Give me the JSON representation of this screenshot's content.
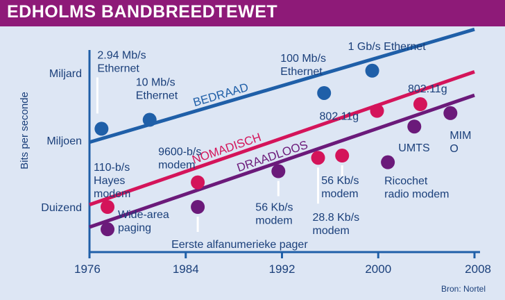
{
  "title": "EDHOLMS BANDBREEDTEWET",
  "source": "Bron: Nortel",
  "colors": {
    "title_bar": "#8e1a78",
    "background": "#dde6f4",
    "wired": "#1f5fa8",
    "nomadic": "#d4145a",
    "wireless": "#6b1a7a"
  },
  "chart_data": {
    "type": "scatter",
    "title": "EDHOLMS BANDBREEDTEWET",
    "ylabel": "Bits per seconde",
    "xlabel": "",
    "x_ticks": [
      "1976",
      "1984",
      "1992",
      "2000",
      "2008"
    ],
    "y_ticks": [
      "Duizend",
      "Miljoen",
      "Miljard"
    ],
    "y_scale": "log",
    "xlim": [
      1976,
      2008
    ],
    "trend_lines": [
      {
        "name": "BEDRAAD",
        "color": "#1f5fa8",
        "x": [
          1976,
          2008
        ],
        "y_log10": [
          5.9,
          10.95
        ]
      },
      {
        "name": "NOMADISCH",
        "color": "#d4145a",
        "x": [
          1976,
          2008
        ],
        "y_log10": [
          3.1,
          9.05
        ]
      },
      {
        "name": "DRAADLOOS",
        "color": "#6b1a7a",
        "x": [
          1976,
          2008
        ],
        "y_log10": [
          2.1,
          8.0
        ]
      }
    ],
    "series": [
      {
        "name": "BEDRAAD",
        "color": "#1f5fa8",
        "points": [
          {
            "x": 1977,
            "y_log10": 6.5,
            "label": "2.94 Mb/s\nEthernet"
          },
          {
            "x": 1981,
            "y_log10": 6.9,
            "label": "10 Mb/s\nEthernet"
          },
          {
            "x": 1995.5,
            "y_log10": 8.1,
            "label": "100 Mb/s\nEthernet"
          },
          {
            "x": 1999.5,
            "y_log10": 9.1,
            "label": "1 Gb/s Ethernet"
          }
        ]
      },
      {
        "name": "NOMADISCH",
        "color": "#d4145a",
        "points": [
          {
            "x": 1977.5,
            "y_log10": 3.0,
            "label": "110-b/s\nHayes\nmodem"
          },
          {
            "x": 1985,
            "y_log10": 4.1,
            "label": "9600-b/s\nmodem"
          },
          {
            "x": 1995,
            "y_log10": 5.2,
            "label": "28.8 Kb/s\nmodem"
          },
          {
            "x": 1997,
            "y_log10": 5.3,
            "label": "56 Kb/s\nmodem"
          },
          {
            "x": 1999.9,
            "y_log10": 7.3,
            "label": "802.11g"
          },
          {
            "x": 2003.5,
            "y_log10": 7.6,
            "label": "802.11g"
          }
        ]
      },
      {
        "name": "DRAADLOOS",
        "color": "#6b1a7a",
        "points": [
          {
            "x": 1977.5,
            "y_log10": 2.0,
            "label": "Wide-area\npaging"
          },
          {
            "x": 1985,
            "y_log10": 3.0,
            "label": "Eerste alfanumerieke pager"
          },
          {
            "x": 1991.7,
            "y_log10": 4.6,
            "label": "56 Kb/s\nmodem"
          },
          {
            "x": 2000.8,
            "y_log10": 5.0,
            "label": "Ricochet\nradio modem"
          },
          {
            "x": 2003,
            "y_log10": 6.6,
            "label": "UMTS"
          },
          {
            "x": 2006,
            "y_log10": 7.2,
            "label": "MIM\nO"
          }
        ]
      }
    ]
  }
}
